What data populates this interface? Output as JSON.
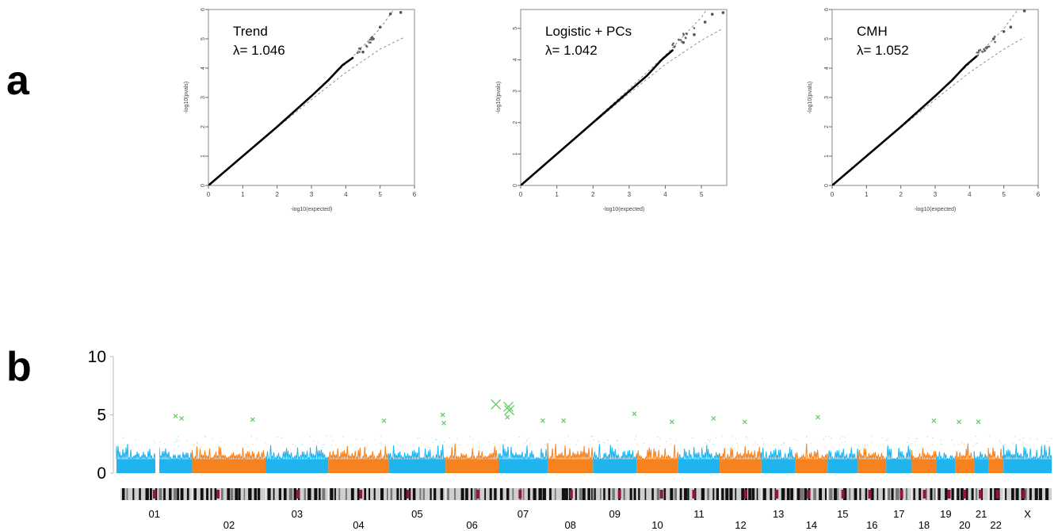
{
  "panel_a": {
    "letter": "a"
  },
  "panel_b": {
    "letter": "b"
  },
  "chart_data": [
    {
      "type": "scatter",
      "panel": "a",
      "xlabel": "-log10(expected)",
      "ylabel": "-log10(pvals)",
      "xlim": [
        0,
        6
      ],
      "ylim": [
        0,
        6
      ],
      "x_ticks": [
        "0",
        "1",
        "2",
        "3",
        "4",
        "5",
        "6"
      ],
      "y_ticks": [
        "0",
        "1",
        "2",
        "3",
        "4",
        "5",
        "6"
      ],
      "annotation": {
        "method": "Trend",
        "lambda": "λ= 1.046"
      },
      "observed": {
        "x": [
          0,
          1,
          2,
          3,
          3.5,
          3.9,
          4.2,
          4.5,
          4.8,
          5.0,
          5.3,
          5.6
        ],
        "y": [
          0,
          1.0,
          2.0,
          3.05,
          3.6,
          4.1,
          4.35,
          4.55,
          5.0,
          5.4,
          5.85,
          5.9
        ]
      },
      "bounds_x": [
        0,
        1,
        2,
        3,
        4,
        5,
        5.7
      ],
      "upper_bound": [
        0,
        1.01,
        2.03,
        3.07,
        4.15,
        5.35,
        6.5
      ],
      "lower_bound": [
        0,
        0.99,
        1.97,
        2.93,
        3.85,
        4.65,
        5.05
      ]
    },
    {
      "type": "scatter",
      "panel": "a",
      "xlabel": "-log10(expected)",
      "ylabel": "-log10(pvals)",
      "xlim": [
        0,
        5.7
      ],
      "ylim": [
        0,
        5.6
      ],
      "x_ticks": [
        "0",
        "1",
        "2",
        "3",
        "4",
        "5"
      ],
      "y_ticks": [
        "0",
        "1",
        "2",
        "3",
        "4",
        "5"
      ],
      "annotation": {
        "method": "Logistic + PCs",
        "lambda": "λ= 1.042"
      },
      "observed": {
        "x": [
          0,
          1,
          2,
          3,
          3.5,
          3.9,
          4.2,
          4.5,
          4.8,
          5.1,
          5.3,
          5.6
        ],
        "y": [
          0,
          1.0,
          2.0,
          3.0,
          3.5,
          4.0,
          4.3,
          4.55,
          4.8,
          5.2,
          5.45,
          5.5
        ]
      },
      "bounds_x": [
        0,
        1,
        2,
        3,
        4,
        5,
        5.6
      ],
      "upper_bound": [
        0,
        1.01,
        2.03,
        3.07,
        4.15,
        5.35,
        6.4
      ],
      "lower_bound": [
        0,
        0.99,
        1.97,
        2.93,
        3.85,
        4.62,
        5.0
      ]
    },
    {
      "type": "scatter",
      "panel": "a",
      "xlabel": "-log10(expected)",
      "ylabel": "-log10(pvals)",
      "xlim": [
        0,
        6
      ],
      "ylim": [
        0,
        6
      ],
      "x_ticks": [
        "0",
        "1",
        "2",
        "3",
        "4",
        "5",
        "6"
      ],
      "y_ticks": [
        "0",
        "1",
        "2",
        "3",
        "4",
        "5",
        "6"
      ],
      "annotation": {
        "method": "CMH",
        "lambda": "λ= 1.052"
      },
      "observed": {
        "x": [
          0,
          1,
          2,
          3,
          3.5,
          3.9,
          4.2,
          4.5,
          4.7,
          5.0,
          5.2,
          5.6
        ],
        "y": [
          0,
          1.0,
          2.0,
          3.05,
          3.6,
          4.1,
          4.4,
          4.7,
          5.0,
          5.25,
          5.4,
          5.95
        ]
      },
      "bounds_x": [
        0,
        1,
        2,
        3,
        4,
        5,
        5.6
      ],
      "upper_bound": [
        0,
        1.01,
        2.03,
        3.07,
        4.15,
        5.35,
        6.3
      ],
      "lower_bound": [
        0,
        0.99,
        1.97,
        2.93,
        3.85,
        4.65,
        5.05
      ]
    },
    {
      "type": "scatter",
      "panel": "b",
      "subtype": "manhattan",
      "ylim": [
        0,
        10
      ],
      "y_ticks": [
        "0",
        "5",
        "10"
      ],
      "chromosomes": [
        "01",
        "02",
        "03",
        "04",
        "05",
        "06",
        "07",
        "08",
        "09",
        "10",
        "11",
        "12",
        "13",
        "14",
        "15",
        "16",
        "17",
        "18",
        "19",
        "20",
        "21",
        "22",
        "X"
      ],
      "chromosome_fraction": [
        0.08,
        0.078,
        0.066,
        0.064,
        0.06,
        0.056,
        0.052,
        0.048,
        0.046,
        0.044,
        0.044,
        0.044,
        0.036,
        0.034,
        0.032,
        0.03,
        0.027,
        0.026,
        0.02,
        0.02,
        0.015,
        0.016,
        0.051
      ],
      "series_colors": [
        "#1fb4ee",
        "#f5821f"
      ],
      "band_max": 2.6,
      "significant_color": "#66cc66",
      "significant_hits": [
        {
          "chr": "01",
          "pos": 0.78,
          "y": 4.9
        },
        {
          "chr": "01",
          "pos": 0.86,
          "y": 4.7
        },
        {
          "chr": "02",
          "pos": 0.82,
          "y": 4.6
        },
        {
          "chr": "04",
          "pos": 0.92,
          "y": 4.5
        },
        {
          "chr": "05",
          "pos": 0.95,
          "y": 5.0
        },
        {
          "chr": "05",
          "pos": 0.97,
          "y": 4.3
        },
        {
          "chr": "06",
          "pos": 0.95,
          "y": 5.9
        },
        {
          "chr": "07",
          "pos": 0.2,
          "y": 5.7
        },
        {
          "chr": "07",
          "pos": 0.22,
          "y": 5.4
        },
        {
          "chr": "07",
          "pos": 0.18,
          "y": 4.8
        },
        {
          "chr": "07",
          "pos": 0.9,
          "y": 4.5
        },
        {
          "chr": "08",
          "pos": 0.35,
          "y": 4.5
        },
        {
          "chr": "09",
          "pos": 0.95,
          "y": 5.1
        },
        {
          "chr": "10",
          "pos": 0.85,
          "y": 4.4
        },
        {
          "chr": "11",
          "pos": 0.85,
          "y": 4.7
        },
        {
          "chr": "12",
          "pos": 0.6,
          "y": 4.4
        },
        {
          "chr": "14",
          "pos": 0.7,
          "y": 4.8
        },
        {
          "chr": "18",
          "pos": 0.9,
          "y": 4.5
        },
        {
          "chr": "20",
          "pos": 0.2,
          "y": 4.4
        },
        {
          "chr": "21",
          "pos": 0.3,
          "y": 4.4
        }
      ]
    }
  ]
}
